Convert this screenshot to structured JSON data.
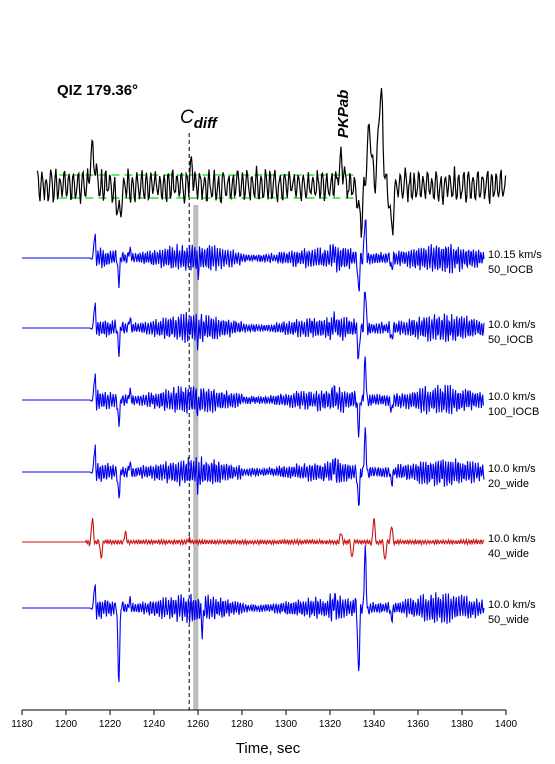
{
  "chart_data": {
    "type": "line",
    "title": "QIZ 179.36°",
    "xlabel": "Time, sec",
    "xlim": [
      1180,
      1400
    ],
    "x_ticks": [
      1180,
      1200,
      1220,
      1240,
      1260,
      1280,
      1300,
      1320,
      1340,
      1360,
      1380,
      1400
    ],
    "phase_labels": {
      "cdiff_base": "C",
      "cdiff_sub": "diff",
      "pkpab": "PKPab"
    },
    "markers": {
      "cdiff_dashed_time": 1256,
      "gray_bar_time": 1259
    },
    "observed": {
      "color": "#000000",
      "noise_band_color": "#33dd33",
      "start": 1187,
      "end": 1400,
      "events": [
        {
          "t": 1212,
          "amp": 1.0
        },
        {
          "t": 1224,
          "amp": -0.7
        },
        {
          "t": 1257,
          "amp": 0.45
        },
        {
          "t": 1325,
          "amp": 0.7
        },
        {
          "t": 1334,
          "amp": -0.9
        },
        {
          "t": 1338,
          "amp": 1.6
        },
        {
          "t": 1343,
          "amp": 2.4
        },
        {
          "t": 1348,
          "amp": -1.0
        }
      ]
    },
    "series": [
      {
        "label_line1": "10.15 km/s",
        "label_line2": "50_IOCB",
        "color": "#0000ee",
        "onset": 1213,
        "events": [
          {
            "t": 1213,
            "amp": 1.2
          },
          {
            "t": 1224,
            "amp": -1.5
          },
          {
            "t": 1229,
            "amp": 0.5
          },
          {
            "t": 1260,
            "amp": -0.6
          },
          {
            "t": 1322,
            "amp": 0.4
          },
          {
            "t": 1333,
            "amp": -2.0
          },
          {
            "t": 1336,
            "amp": 2.5
          },
          {
            "t": 1348,
            "amp": -0.7
          }
        ]
      },
      {
        "label_line1": "10.0 km/s",
        "label_line2": "50_IOCB",
        "color": "#0000ee",
        "onset": 1213,
        "events": [
          {
            "t": 1213,
            "amp": 1.2
          },
          {
            "t": 1224,
            "amp": -1.5
          },
          {
            "t": 1229,
            "amp": 0.5
          },
          {
            "t": 1260,
            "amp": -0.6
          },
          {
            "t": 1322,
            "amp": 0.4
          },
          {
            "t": 1333,
            "amp": -2.0
          },
          {
            "t": 1336,
            "amp": 2.5
          },
          {
            "t": 1348,
            "amp": -0.7
          }
        ]
      },
      {
        "label_line1": "10.0 km/s",
        "label_line2": "100_IOCB",
        "color": "#0000ee",
        "onset": 1213,
        "events": [
          {
            "t": 1213,
            "amp": 1.2
          },
          {
            "t": 1224,
            "amp": -1.5
          },
          {
            "t": 1229,
            "amp": 0.5
          },
          {
            "t": 1260,
            "amp": -0.6
          },
          {
            "t": 1322,
            "amp": 0.4
          },
          {
            "t": 1333,
            "amp": -2.0
          },
          {
            "t": 1336,
            "amp": 2.5
          },
          {
            "t": 1348,
            "amp": -0.7
          }
        ]
      },
      {
        "label_line1": "10.0 km/s",
        "label_line2": "20_wide",
        "color": "#0000ee",
        "onset": 1213,
        "events": [
          {
            "t": 1213,
            "amp": 1.2
          },
          {
            "t": 1224,
            "amp": -1.5
          },
          {
            "t": 1229,
            "amp": 0.5
          },
          {
            "t": 1260,
            "amp": -0.6
          },
          {
            "t": 1322,
            "amp": 0.4
          },
          {
            "t": 1333,
            "amp": -2.0
          },
          {
            "t": 1336,
            "amp": 2.5
          },
          {
            "t": 1348,
            "amp": -0.7
          }
        ]
      },
      {
        "label_line1": "10.0 km/s",
        "label_line2": "40_wide",
        "color": "#cc1111",
        "onset": 1209,
        "events": [
          {
            "t": 1212,
            "amp": 1.5
          },
          {
            "t": 1216,
            "amp": -1.0
          },
          {
            "t": 1227,
            "amp": 0.6
          },
          {
            "t": 1256,
            "amp": 0.2
          },
          {
            "t": 1325,
            "amp": 0.6
          },
          {
            "t": 1330,
            "amp": -1.0
          },
          {
            "t": 1340,
            "amp": 1.5
          },
          {
            "t": 1345,
            "amp": -1.2
          },
          {
            "t": 1348,
            "amp": 1.0
          }
        ]
      },
      {
        "label_line1": "10.0 km/s",
        "label_line2": "50_wide",
        "color": "#0000ee",
        "onset": 1213,
        "events": [
          {
            "t": 1213,
            "amp": 1.2
          },
          {
            "t": 1224,
            "amp": -4.5
          },
          {
            "t": 1229,
            "amp": 0.5
          },
          {
            "t": 1262,
            "amp": -1.4
          },
          {
            "t": 1322,
            "amp": 0.4
          },
          {
            "t": 1333,
            "amp": -4.0
          },
          {
            "t": 1336,
            "amp": 3.5
          },
          {
            "t": 1348,
            "amp": -0.7
          }
        ]
      }
    ]
  }
}
